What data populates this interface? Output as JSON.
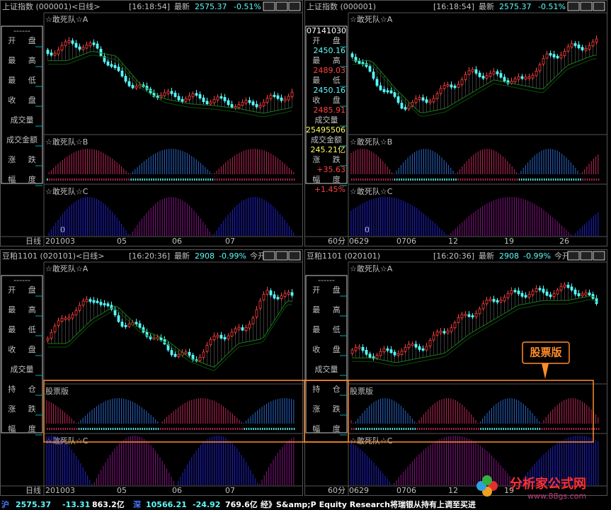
{
  "panels": [
    {
      "header": {
        "title": "上证指数 (000001)<日线>",
        "time": "[16:18:54]",
        "latest": "最新",
        "price": "2575.37",
        "change": "-0.51%"
      },
      "indicators": [
        "☆敢死队☆A",
        "☆敢死队☆B",
        "☆敢死队☆C"
      ],
      "info": [
        {
          "label": "------"
        },
        {
          "label": "开 盘"
        },
        {
          "label": "最 高"
        },
        {
          "label": "最 低"
        },
        {
          "label": "收 盘"
        },
        {
          "label": "成交量"
        },
        {
          "label": "成交金额"
        },
        {
          "label": "涨 跌"
        },
        {
          "label": "幅 度"
        }
      ],
      "zero": "0",
      "period": "日线",
      "x_labels": [
        "201003",
        "05",
        "06",
        "07"
      ]
    },
    {
      "header": {
        "title": "上证指数 (000001)",
        "time": "[16:18:54]",
        "latest": "最新",
        "price": "2575.37",
        "change": "-0.51%"
      },
      "indicators": [
        "☆敢死队☆A",
        "☆敢死队☆B",
        "☆敢死队☆C"
      ],
      "info": [
        {
          "label": "07141030"
        },
        {
          "label": "开 盘",
          "value": "2450.16",
          "color": "#5ffbfb"
        },
        {
          "label": "最 高",
          "value": "2489.03",
          "color": "#ff4040"
        },
        {
          "label": "最 低",
          "value": "2450.16",
          "color": "#5ffbfb"
        },
        {
          "label": "收 盘",
          "value": "2485.91",
          "color": "#ff4040"
        },
        {
          "label": "成交量",
          "value": "25495506",
          "color": "#ffff60"
        },
        {
          "label": "成交金额",
          "value": "245.21亿",
          "color": "#ffff60"
        },
        {
          "label": "涨 跌",
          "value": "+35.63",
          "color": "#ff4040"
        },
        {
          "label": "幅 度",
          "value": "+1.45%",
          "color": "#ff4040"
        }
      ],
      "zero": "0",
      "period": "60分",
      "x_labels": [
        "0629",
        "0706",
        "12",
        "19",
        "26"
      ]
    },
    {
      "header": {
        "title": "豆粕1101 (020101)<日线>",
        "time": "[16:20:36]",
        "latest": "最新",
        "price": "2908",
        "change": "-0.99%",
        "extra": "今开"
      },
      "indicators": [
        "☆敢死队☆A",
        "股票版",
        "☆敢死队☆C"
      ],
      "info": [
        {
          "label": "------"
        },
        {
          "label": "开 盘"
        },
        {
          "label": "最 高"
        },
        {
          "label": "最 低"
        },
        {
          "label": "收 盘"
        },
        {
          "label": "成交量"
        },
        {
          "label": "持 仓"
        },
        {
          "label": "涨 跌"
        },
        {
          "label": "幅 度"
        }
      ],
      "period": "日线",
      "x_labels": [
        "201003",
        "05",
        "06",
        "07"
      ]
    },
    {
      "header": {
        "title": "豆粕1101 (020101)",
        "time": "[16:20:36]",
        "latest": "最新",
        "price": "2908",
        "change": "-0.99%",
        "extra": "今开"
      },
      "indicators": [
        "☆敢死队☆A",
        "股票版",
        "☆敢死队☆C"
      ],
      "info": [
        {
          "label": "------"
        },
        {
          "label": "开 盘"
        },
        {
          "label": "最 高"
        },
        {
          "label": "最 低"
        },
        {
          "label": "收 盘"
        },
        {
          "label": "成交量"
        },
        {
          "label": "持 仓"
        },
        {
          "label": "涨 跌"
        },
        {
          "label": "幅 度"
        }
      ],
      "period": "60分",
      "x_labels": [
        "0629",
        "0706",
        "12",
        "19"
      ]
    }
  ],
  "callout": "股票版",
  "status_bar": [
    "沪",
    "2575.37",
    "-13.31",
    "863.2亿",
    "深",
    "10566.21",
    "-24.92",
    "769.6亿",
    "经》S&amp;P Equity Research将瑞银从持有上调至买进"
  ],
  "watermark": {
    "title": "分析家公式网",
    "url": "www.88gs.com"
  }
}
